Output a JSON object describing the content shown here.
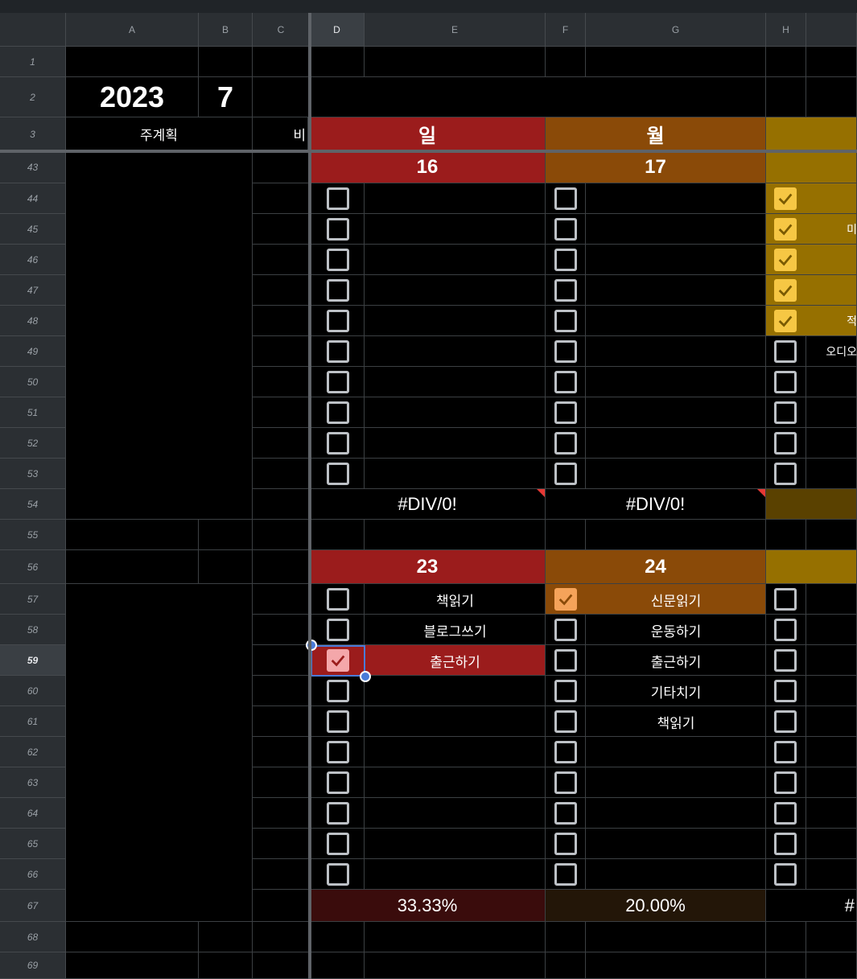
{
  "columns": [
    "A",
    "B",
    "C",
    "D",
    "E",
    "F",
    "G",
    "H"
  ],
  "rows": [
    "1",
    "2",
    "3",
    "43",
    "44",
    "45",
    "46",
    "47",
    "48",
    "49",
    "50",
    "51",
    "52",
    "53",
    "54",
    "55",
    "56",
    "57",
    "58",
    "59",
    "60",
    "61",
    "62",
    "63",
    "64",
    "65",
    "66",
    "67",
    "68",
    "69"
  ],
  "header": {
    "year": "2023",
    "month": "7",
    "plan_label": "주계획",
    "c_label": "비"
  },
  "day_names": [
    "일",
    "월"
  ],
  "colors": {
    "sun": "#9b1c1c",
    "mon": "#8a4a08",
    "tue": "#967000",
    "sun_dark": "#3a0c0c",
    "mon_dark": "#231608",
    "tue_dark": "#5a4100"
  },
  "week1": {
    "dates": [
      "16",
      "17"
    ],
    "tue_items": [
      "",
      "미",
      "",
      "",
      "적",
      "오디오"
    ],
    "results": [
      "#DIV/0!",
      "#DIV/0!"
    ]
  },
  "week2": {
    "dates": [
      "23",
      "24"
    ],
    "sun_items": [
      "책읽기",
      "블로그쓰기",
      "출근하기"
    ],
    "mon_items": [
      "신문읽기",
      "운동하기",
      "출근하기",
      "기타치기",
      "책읽기"
    ],
    "results": [
      "33.33%",
      "20.00%",
      "#"
    ]
  }
}
